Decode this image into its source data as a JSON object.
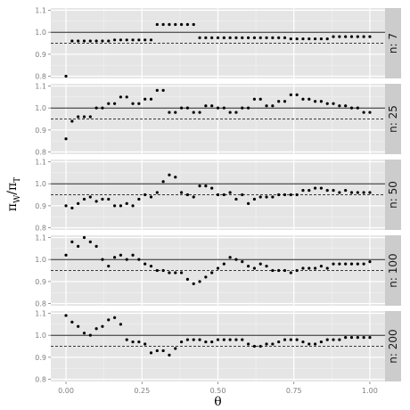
{
  "chart_data": {
    "type": "scatter",
    "xlabel": "θ",
    "ylabel": {
      "main1": "π",
      "sub1": "W",
      "sep": "/",
      "main2": "π",
      "sub2": "T"
    },
    "xlim": [
      -0.05,
      1.05
    ],
    "ylim": [
      0.79,
      1.11
    ],
    "x_ticks": [
      0.0,
      0.25,
      0.5,
      0.75,
      1.0
    ],
    "x_tick_labels": [
      "0.00",
      "0.25",
      "0.50",
      "0.75",
      "1.00"
    ],
    "y_ticks": [
      0.8,
      0.9,
      1.0,
      1.1
    ],
    "y_tick_labels": [
      "0.8",
      "0.9",
      "1.0",
      "1.1"
    ],
    "ref_solid": 1.0,
    "ref_dashed": 0.95,
    "grid": true,
    "x": [
      0.0,
      0.02,
      0.04,
      0.06,
      0.08,
      0.1,
      0.12,
      0.14,
      0.16,
      0.18,
      0.2,
      0.22,
      0.24,
      0.26,
      0.28,
      0.3,
      0.32,
      0.34,
      0.36,
      0.38,
      0.4,
      0.42,
      0.44,
      0.46,
      0.48,
      0.5,
      0.52,
      0.54,
      0.56,
      0.58,
      0.6,
      0.62,
      0.64,
      0.66,
      0.68,
      0.7,
      0.72,
      0.74,
      0.76,
      0.78,
      0.8,
      0.82,
      0.84,
      0.86,
      0.88,
      0.9,
      0.92,
      0.94,
      0.96,
      0.98,
      1.0
    ],
    "panels": [
      {
        "strip": "n: 7",
        "y": [
          0.8,
          0.96,
          0.96,
          0.96,
          0.96,
          0.96,
          0.96,
          0.96,
          0.965,
          0.965,
          0.965,
          0.965,
          0.965,
          0.965,
          0.965,
          1.035,
          1.035,
          1.035,
          1.035,
          1.035,
          1.035,
          1.035,
          0.975,
          0.975,
          0.975,
          0.975,
          0.975,
          0.975,
          0.975,
          0.975,
          0.975,
          0.975,
          0.975,
          0.975,
          0.975,
          0.975,
          0.975,
          0.97,
          0.97,
          0.97,
          0.97,
          0.97,
          0.97,
          0.97,
          0.98,
          0.98,
          0.98,
          0.98,
          0.98,
          0.98,
          0.98
        ]
      },
      {
        "strip": "n: 25",
        "y": [
          0.86,
          0.94,
          0.96,
          0.96,
          0.96,
          1.0,
          1.0,
          1.02,
          1.02,
          1.05,
          1.05,
          1.02,
          1.02,
          1.04,
          1.04,
          1.08,
          1.08,
          0.98,
          0.98,
          1.0,
          1.0,
          0.98,
          0.98,
          1.01,
          1.01,
          1.0,
          1.0,
          0.98,
          0.98,
          1.0,
          1.0,
          1.04,
          1.04,
          1.01,
          1.01,
          1.03,
          1.03,
          1.06,
          1.06,
          1.04,
          1.04,
          1.03,
          1.03,
          1.02,
          1.02,
          1.01,
          1.01,
          1.0,
          1.0,
          0.98,
          0.98
        ]
      },
      {
        "strip": "n: 50",
        "y": [
          0.9,
          0.89,
          0.91,
          0.93,
          0.94,
          0.92,
          0.93,
          0.93,
          0.9,
          0.9,
          0.91,
          0.9,
          0.93,
          0.95,
          0.94,
          0.96,
          1.01,
          1.04,
          1.03,
          0.96,
          0.95,
          0.94,
          0.99,
          0.99,
          0.98,
          0.95,
          0.95,
          0.96,
          0.93,
          0.95,
          0.91,
          0.93,
          0.94,
          0.94,
          0.94,
          0.95,
          0.95,
          0.95,
          0.95,
          0.97,
          0.97,
          0.98,
          0.98,
          0.97,
          0.97,
          0.96,
          0.97,
          0.96,
          0.96,
          0.96,
          0.96
        ]
      },
      {
        "strip": "n: 100",
        "y": [
          1.02,
          1.08,
          1.06,
          1.1,
          1.08,
          1.06,
          1.0,
          0.97,
          1.01,
          1.02,
          1.0,
          1.02,
          1.0,
          0.98,
          0.97,
          0.95,
          0.95,
          0.94,
          0.94,
          0.94,
          0.91,
          0.89,
          0.9,
          0.92,
          0.94,
          0.96,
          0.98,
          1.01,
          1.0,
          0.99,
          0.97,
          0.96,
          0.98,
          0.97,
          0.95,
          0.95,
          0.95,
          0.94,
          0.95,
          0.96,
          0.96,
          0.96,
          0.97,
          0.96,
          0.98,
          0.98,
          0.98,
          0.98,
          0.98,
          0.98,
          0.99
        ]
      },
      {
        "strip": "n: 200",
        "y": [
          1.09,
          1.06,
          1.04,
          1.01,
          1.0,
          1.03,
          1.04,
          1.07,
          1.08,
          1.05,
          0.98,
          0.97,
          0.97,
          0.96,
          0.92,
          0.93,
          0.93,
          0.91,
          0.94,
          0.97,
          0.98,
          0.98,
          0.98,
          0.97,
          0.97,
          0.98,
          0.98,
          0.98,
          0.98,
          0.98,
          0.96,
          0.95,
          0.95,
          0.96,
          0.96,
          0.97,
          0.98,
          0.98,
          0.98,
          0.97,
          0.96,
          0.96,
          0.97,
          0.98,
          0.98,
          0.98,
          0.99,
          0.99,
          0.99,
          0.99,
          0.99
        ]
      }
    ]
  }
}
